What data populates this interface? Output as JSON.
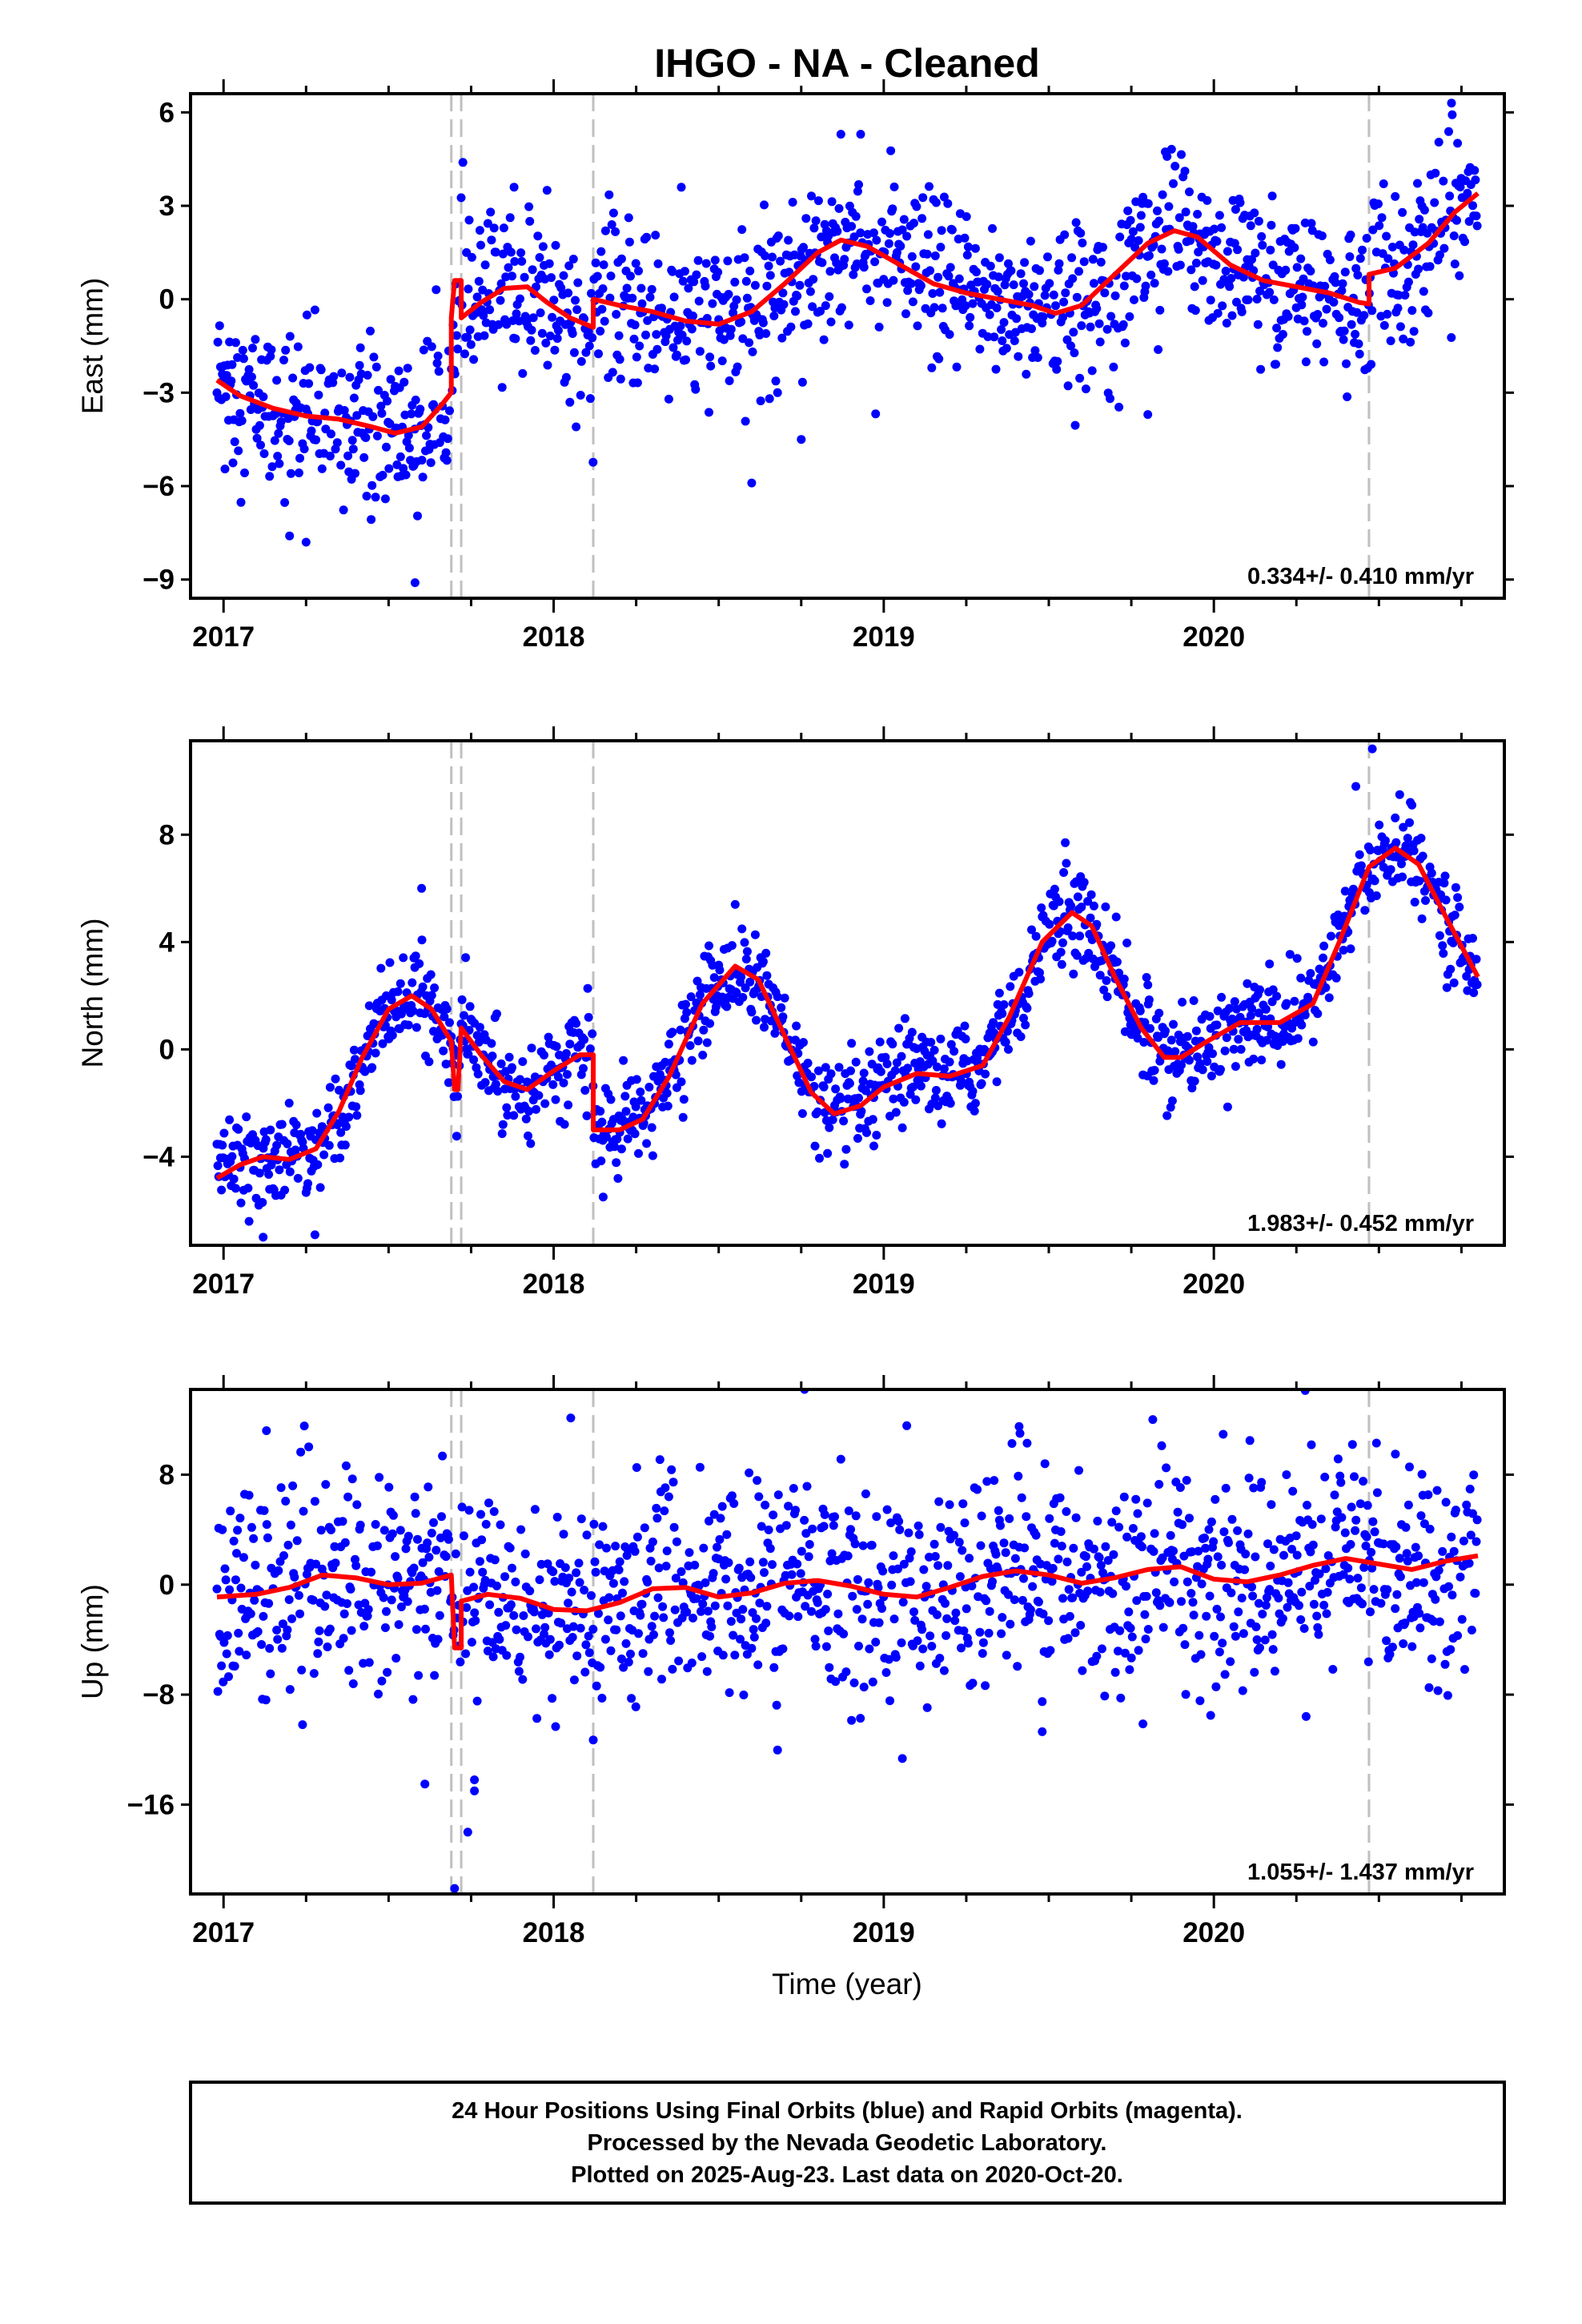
{
  "title": "IHGO  - NA - Cleaned",
  "xlabel": "Time (year)",
  "footer": [
    "24 Hour Positions Using Final Orbits (blue) and Rapid Orbits (magenta).",
    "Processed by the Nevada Geodetic Laboratory.",
    "Plotted on 2025-Aug-23. Last data on 2020-Oct-20."
  ],
  "colors": {
    "data": "#0000ff",
    "model": "#ff0000",
    "event_line": "#c0c0c0",
    "axis": "#000000"
  },
  "chart_data": [
    {
      "type": "scatter",
      "component": "east",
      "ylabel": "East (mm)",
      "rate": "0.334+/- 0.410 mm/yr",
      "xlim": [
        2016.9,
        2020.88
      ],
      "ylim": [
        -9.6,
        6.6
      ],
      "xticks": [
        2017,
        2018,
        2019,
        2020
      ],
      "yticks": [
        -9,
        -6,
        -3,
        0,
        3,
        6
      ],
      "grid": false,
      "event_lines": [
        2017.69,
        2017.72,
        2018.12,
        2020.47
      ],
      "model": [
        [
          2016.98,
          -2.6
        ],
        [
          2017.05,
          -3.1
        ],
        [
          2017.15,
          -3.5
        ],
        [
          2017.25,
          -3.75
        ],
        [
          2017.35,
          -3.85
        ],
        [
          2017.45,
          -4.1
        ],
        [
          2017.52,
          -4.3
        ],
        [
          2017.6,
          -4.1
        ],
        [
          2017.66,
          -3.4
        ],
        [
          2017.69,
          -3.0
        ],
        [
          2017.69,
          -0.6
        ],
        [
          2017.7,
          0.6
        ],
        [
          2017.72,
          0.6
        ],
        [
          2017.72,
          -0.6
        ],
        [
          2017.78,
          -0.1
        ],
        [
          2017.85,
          0.35
        ],
        [
          2017.92,
          0.4
        ],
        [
          2017.98,
          -0.1
        ],
        [
          2018.05,
          -0.6
        ],
        [
          2018.12,
          -0.9
        ],
        [
          2018.12,
          0.0
        ],
        [
          2018.2,
          -0.2
        ],
        [
          2018.3,
          -0.4
        ],
        [
          2018.4,
          -0.7
        ],
        [
          2018.5,
          -0.8
        ],
        [
          2018.6,
          -0.4
        ],
        [
          2018.7,
          0.5
        ],
        [
          2018.8,
          1.5
        ],
        [
          2018.87,
          1.9
        ],
        [
          2018.95,
          1.7
        ],
        [
          2019.05,
          1.1
        ],
        [
          2019.15,
          0.5
        ],
        [
          2019.25,
          0.2
        ],
        [
          2019.35,
          0.0
        ],
        [
          2019.45,
          -0.2
        ],
        [
          2019.52,
          -0.45
        ],
        [
          2019.6,
          -0.2
        ],
        [
          2019.7,
          0.8
        ],
        [
          2019.8,
          1.8
        ],
        [
          2019.88,
          2.2
        ],
        [
          2019.95,
          2.0
        ],
        [
          2020.05,
          1.1
        ],
        [
          2020.15,
          0.6
        ],
        [
          2020.25,
          0.4
        ],
        [
          2020.35,
          0.2
        ],
        [
          2020.44,
          -0.1
        ],
        [
          2020.47,
          -0.15
        ],
        [
          2020.47,
          0.8
        ],
        [
          2020.55,
          1.0
        ],
        [
          2020.65,
          1.8
        ],
        [
          2020.73,
          2.8
        ],
        [
          2020.8,
          3.4
        ]
      ],
      "noise": 1.3,
      "outliers": [
        [
          2017.58,
          -9.1
        ],
        [
          2017.25,
          -7.8
        ],
        [
          2017.2,
          -7.6
        ],
        [
          2018.6,
          -5.9
        ],
        [
          2018.75,
          -4.5
        ],
        [
          2019.8,
          -3.7
        ],
        [
          2018.87,
          5.3
        ],
        [
          2018.93,
          5.3
        ],
        [
          2020.72,
          6.3
        ],
        [
          2017.88,
          3.6
        ],
        [
          2017.98,
          3.5
        ]
      ]
    },
    {
      "type": "scatter",
      "component": "north",
      "ylabel": "North (mm)",
      "rate": "1.983+/- 0.452 mm/yr",
      "xlim": [
        2016.9,
        2020.88
      ],
      "ylim": [
        -7.3,
        11.5
      ],
      "xticks": [
        2017,
        2018,
        2019,
        2020
      ],
      "yticks": [
        -4,
        0,
        4,
        8
      ],
      "grid": false,
      "event_lines": [
        2017.69,
        2017.72,
        2018.12,
        2020.47
      ],
      "model": [
        [
          2016.98,
          -4.8
        ],
        [
          2017.05,
          -4.3
        ],
        [
          2017.12,
          -4.0
        ],
        [
          2017.2,
          -4.1
        ],
        [
          2017.28,
          -3.7
        ],
        [
          2017.35,
          -2.3
        ],
        [
          2017.42,
          -0.3
        ],
        [
          2017.5,
          1.5
        ],
        [
          2017.57,
          2.0
        ],
        [
          2017.63,
          1.5
        ],
        [
          2017.69,
          0.3
        ],
        [
          2017.7,
          -1.5
        ],
        [
          2017.71,
          -1.5
        ],
        [
          2017.72,
          0.8
        ],
        [
          2017.78,
          -0.2
        ],
        [
          2017.85,
          -1.2
        ],
        [
          2017.92,
          -1.5
        ],
        [
          2018.0,
          -0.8
        ],
        [
          2018.08,
          -0.2
        ],
        [
          2018.12,
          -0.2
        ],
        [
          2018.12,
          -3.0
        ],
        [
          2018.2,
          -3.0
        ],
        [
          2018.27,
          -2.6
        ],
        [
          2018.35,
          -1.0
        ],
        [
          2018.45,
          1.7
        ],
        [
          2018.55,
          3.1
        ],
        [
          2018.62,
          2.6
        ],
        [
          2018.7,
          0.5
        ],
        [
          2018.78,
          -1.6
        ],
        [
          2018.85,
          -2.4
        ],
        [
          2018.93,
          -2.1
        ],
        [
          2019.0,
          -1.4
        ],
        [
          2019.1,
          -0.9
        ],
        [
          2019.2,
          -1.0
        ],
        [
          2019.3,
          -0.6
        ],
        [
          2019.38,
          1.2
        ],
        [
          2019.48,
          4.0
        ],
        [
          2019.57,
          5.1
        ],
        [
          2019.63,
          4.6
        ],
        [
          2019.7,
          2.7
        ],
        [
          2019.78,
          0.8
        ],
        [
          2019.85,
          -0.3
        ],
        [
          2019.9,
          -0.3
        ],
        [
          2019.98,
          0.3
        ],
        [
          2020.08,
          1.0
        ],
        [
          2020.2,
          1.0
        ],
        [
          2020.3,
          1.7
        ],
        [
          2020.38,
          4.0
        ],
        [
          2020.47,
          6.8
        ],
        [
          2020.55,
          7.5
        ],
        [
          2020.62,
          6.9
        ],
        [
          2020.7,
          5.0
        ],
        [
          2020.8,
          2.7
        ]
      ],
      "noise": 0.85,
      "outliers": [
        [
          2017.12,
          -7.0
        ],
        [
          2017.6,
          6.0
        ],
        [
          2018.15,
          -5.5
        ],
        [
          2018.97,
          -3.6
        ],
        [
          2019.8,
          2.4
        ],
        [
          2020.48,
          11.2
        ],
        [
          2020.43,
          9.8
        ],
        [
          2020.6,
          9.1
        ],
        [
          2019.55,
          7.7
        ],
        [
          2018.55,
          5.4
        ]
      ]
    },
    {
      "type": "scatter",
      "component": "up",
      "ylabel": "Up (mm)",
      "rate": "1.055+/- 1.437 mm/yr",
      "xlim": [
        2016.9,
        2020.88
      ],
      "ylim": [
        -22.5,
        14.2
      ],
      "xticks": [
        2017,
        2018,
        2019,
        2020
      ],
      "yticks": [
        -16,
        -8,
        0,
        8
      ],
      "grid": false,
      "event_lines": [
        2017.69,
        2017.72,
        2018.12,
        2020.47
      ],
      "model": [
        [
          2016.98,
          -0.9
        ],
        [
          2017.1,
          -0.7
        ],
        [
          2017.2,
          -0.2
        ],
        [
          2017.3,
          0.7
        ],
        [
          2017.4,
          0.5
        ],
        [
          2017.5,
          0.0
        ],
        [
          2017.6,
          0.1
        ],
        [
          2017.69,
          0.7
        ],
        [
          2017.7,
          -4.6
        ],
        [
          2017.72,
          -4.6
        ],
        [
          2017.72,
          -1.2
        ],
        [
          2017.8,
          -0.7
        ],
        [
          2017.9,
          -1.0
        ],
        [
          2018.0,
          -1.8
        ],
        [
          2018.1,
          -1.9
        ],
        [
          2018.2,
          -1.3
        ],
        [
          2018.3,
          -0.3
        ],
        [
          2018.4,
          -0.2
        ],
        [
          2018.5,
          -0.9
        ],
        [
          2018.6,
          -0.6
        ],
        [
          2018.7,
          0.1
        ],
        [
          2018.8,
          0.3
        ],
        [
          2018.9,
          -0.1
        ],
        [
          2019.0,
          -0.7
        ],
        [
          2019.1,
          -0.9
        ],
        [
          2019.2,
          -0.2
        ],
        [
          2019.3,
          0.6
        ],
        [
          2019.4,
          1.0
        ],
        [
          2019.5,
          0.7
        ],
        [
          2019.6,
          0.1
        ],
        [
          2019.7,
          0.5
        ],
        [
          2019.8,
          1.1
        ],
        [
          2019.9,
          1.3
        ],
        [
          2020.0,
          0.4
        ],
        [
          2020.1,
          0.2
        ],
        [
          2020.2,
          0.7
        ],
        [
          2020.3,
          1.4
        ],
        [
          2020.4,
          1.9
        ],
        [
          2020.5,
          1.5
        ],
        [
          2020.6,
          1.1
        ],
        [
          2020.7,
          1.7
        ],
        [
          2020.8,
          2.1
        ]
      ],
      "noise": 3.9,
      "outliers": [
        [
          2017.13,
          11.2
        ],
        [
          2018.76,
          14.2
        ],
        [
          2017.7,
          -22.1
        ],
        [
          2017.74,
          -18.0
        ],
        [
          2017.76,
          -14.2
        ],
        [
          2017.76,
          -15.0
        ],
        [
          2017.61,
          -14.5
        ],
        [
          2018.12,
          -11.3
        ],
        [
          2019.48,
          -10.7
        ],
        [
          2019.41,
          11.5
        ],
        [
          2020.42,
          10.2
        ],
        [
          2020.55,
          9.5
        ]
      ]
    }
  ]
}
